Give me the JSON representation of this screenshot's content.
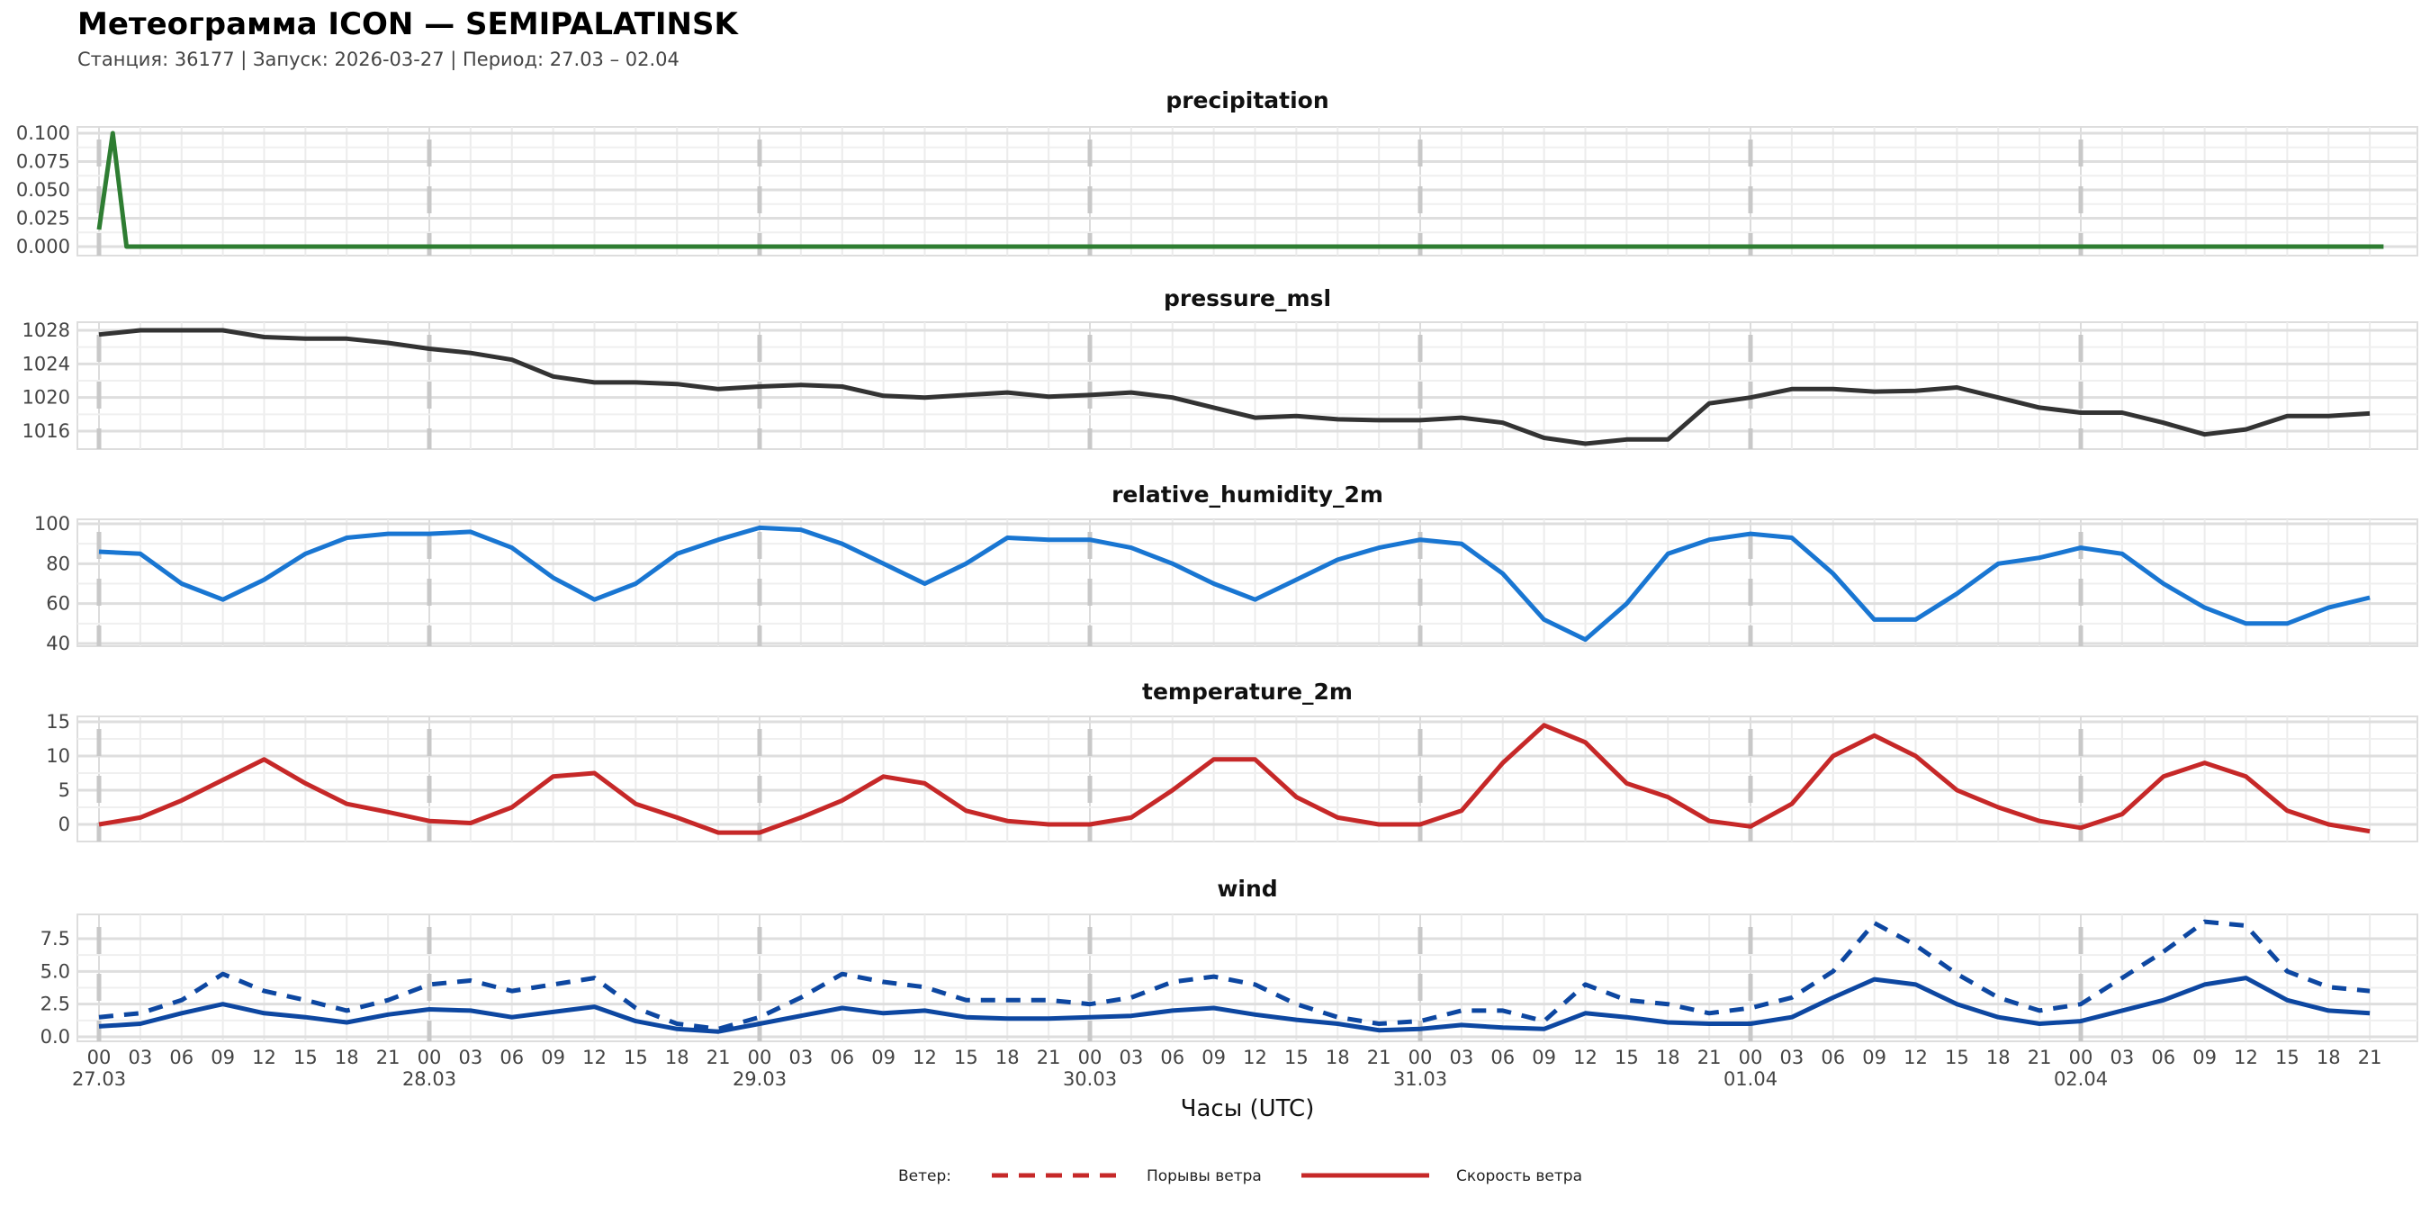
{
  "header": {
    "title": "Метеограмма ICON — SEMIPALATINSK",
    "subtitle": "Станция: 36177  | Запуск: 2026-03-27  | Период: 27.03 – 02.04"
  },
  "colors": {
    "precipitation": "#2e7d32",
    "pressure_msl": "#333333",
    "relative_humidity_2m": "#1976d2",
    "temperature_2m": "#c62828",
    "wind": "#0d47a1",
    "legend": "#c62828"
  },
  "chart_data": {
    "type": "line",
    "xlabel": "Часы (UTC)",
    "x_hours": [
      0,
      3,
      6,
      9,
      12,
      15,
      18,
      21,
      24,
      27,
      30,
      33,
      36,
      39,
      42,
      45,
      48,
      51,
      54,
      57,
      60,
      63,
      66,
      69,
      72,
      75,
      78,
      81,
      84,
      87,
      90,
      93,
      96,
      99,
      102,
      105,
      108,
      111,
      114,
      117,
      120,
      123,
      126,
      129,
      132,
      135,
      138,
      141,
      144,
      147,
      150,
      153,
      156,
      159,
      162,
      165
    ],
    "hour_tick_labels": [
      "00",
      "03",
      "06",
      "09",
      "12",
      "15",
      "18",
      "21"
    ],
    "date_labels": [
      "27.03",
      "28.03",
      "29.03",
      "30.03",
      "31.03",
      "01.04",
      "02.04"
    ],
    "panels": [
      {
        "title": "precipitation",
        "yticks": [
          "0.000",
          "0.025",
          "0.050",
          "0.075",
          "0.100"
        ],
        "ylim": [
          0,
          0.1
        ],
        "series": [
          {
            "name": "precipitation",
            "style": "solid",
            "x": [
              0,
              1,
              2,
              166
            ],
            "values": [
              0.015,
              0.1,
              0,
              0
            ]
          }
        ]
      },
      {
        "title": "pressure_msl",
        "yticks": [
          "1016",
          "1020",
          "1024",
          "1028"
        ],
        "ylim": [
          1016,
          1028
        ],
        "series": [
          {
            "name": "pressure_msl",
            "style": "solid",
            "values": [
              1027.5,
              1028,
              1028,
              1028,
              1027.2,
              1027,
              1027,
              1026.5,
              1025.8,
              1025.3,
              1024.5,
              1022.5,
              1021.8,
              1021.8,
              1021.6,
              1021,
              1021.3,
              1021.5,
              1021.3,
              1020.2,
              1020,
              1020.3,
              1020.6,
              1020.1,
              1020.3,
              1020.6,
              1020,
              1018.8,
              1017.6,
              1017.8,
              1017.4,
              1017.3,
              1017.3,
              1017.6,
              1017,
              1015.2,
              1014.5,
              1015,
              1015,
              1019.3,
              1020,
              1021,
              1021,
              1020.7,
              1020.8,
              1021.2,
              1020,
              1018.8,
              1018.2,
              1018.2,
              1017,
              1015.6,
              1016.2,
              1017.8,
              1017.8,
              1018.1
            ]
          }
        ]
      },
      {
        "title": "relative_humidity_2m",
        "yticks": [
          "40",
          "60",
          "80",
          "100"
        ],
        "ylim": [
          40,
          100
        ],
        "series": [
          {
            "name": "relative_humidity_2m",
            "style": "solid",
            "values": [
              86,
              85,
              70,
              62,
              72,
              85,
              93,
              95,
              95,
              96,
              88,
              73,
              62,
              70,
              85,
              92,
              98,
              97,
              90,
              80,
              70,
              80,
              93,
              92,
              92,
              88,
              80,
              70,
              62,
              72,
              82,
              88,
              92,
              90,
              75,
              52,
              42,
              60,
              85,
              92,
              95,
              93,
              75,
              52,
              52,
              65,
              80,
              83,
              88,
              85,
              70,
              58,
              50,
              50,
              58,
              63
            ]
          }
        ]
      },
      {
        "title": "temperature_2m",
        "yticks": [
          "0",
          "5",
          "10",
          "15"
        ],
        "ylim": [
          0,
          15
        ],
        "series": [
          {
            "name": "temperature_2m",
            "style": "solid",
            "values": [
              0,
              1,
              3.5,
              6.5,
              9.5,
              6,
              3,
              1.8,
              0.5,
              0.2,
              2.5,
              7,
              7.5,
              3,
              1,
              -1.2,
              -1.2,
              1,
              3.5,
              7,
              6,
              2,
              0.5,
              0,
              0,
              1,
              5,
              9.5,
              9.5,
              4,
              1,
              0,
              0,
              2,
              9,
              14.5,
              12,
              6,
              4,
              0.5,
              -0.3,
              3,
              10,
              13,
              10,
              5,
              2.5,
              0.5,
              -0.5,
              1.5,
              7,
              9,
              7,
              2,
              0,
              -1
            ]
          }
        ]
      },
      {
        "title": "wind",
        "yticks": [
          "0.0",
          "2.5",
          "5.0",
          "7.5"
        ],
        "ylim": [
          0,
          7.5
        ],
        "series": [
          {
            "name": "Порывы ветра",
            "style": "dashed",
            "values": [
              1.5,
              1.8,
              2.8,
              4.8,
              3.5,
              2.8,
              2,
              2.8,
              4,
              4.3,
              3.5,
              4,
              4.5,
              2.2,
              1,
              0.6,
              1.5,
              3,
              4.8,
              4.2,
              3.8,
              2.8,
              2.8,
              2.8,
              2.5,
              3,
              4.2,
              4.6,
              4,
              2.5,
              1.5,
              1,
              1.2,
              2,
              2,
              1.2,
              4,
              2.8,
              2.5,
              1.8,
              2.2,
              3,
              5,
              8.7,
              7,
              4.8,
              3,
              2,
              2.5,
              4.5,
              6.5,
              8.8,
              8.5,
              5,
              3.8,
              3.5
            ]
          },
          {
            "name": "Скорость ветра",
            "style": "solid",
            "values": [
              0.8,
              1,
              1.8,
              2.5,
              1.8,
              1.5,
              1.1,
              1.7,
              2.1,
              2,
              1.5,
              1.9,
              2.3,
              1.2,
              0.6,
              0.4,
              1,
              1.6,
              2.2,
              1.8,
              2,
              1.5,
              1.4,
              1.4,
              1.5,
              1.6,
              2,
              2.2,
              1.7,
              1.3,
              1,
              0.5,
              0.6,
              0.9,
              0.7,
              0.6,
              1.8,
              1.5,
              1.1,
              1,
              1,
              1.5,
              3,
              4.4,
              4,
              2.5,
              1.5,
              1,
              1.2,
              2,
              2.8,
              4,
              4.5,
              2.8,
              2,
              1.8
            ]
          }
        ]
      }
    ],
    "legend": {
      "title": "Ветер:",
      "items": [
        "Порывы ветра",
        "Скорость ветра"
      ],
      "placement": "bottom-center"
    }
  }
}
